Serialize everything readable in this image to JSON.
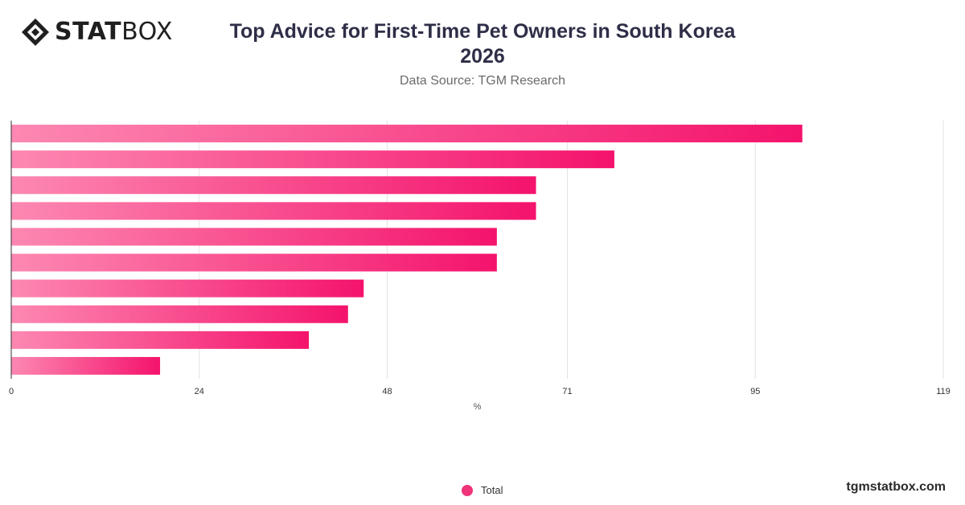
{
  "brand": {
    "logo_bold": "STAT",
    "logo_light": "BOX",
    "footer": "tgmstatbox.com"
  },
  "header": {
    "title_line1": "Top Advice for First-Time Pet Owners in South Korea",
    "title_line2": "2026",
    "subtitle": "Data Source: TGM Research"
  },
  "colors": {
    "bar_start": "#fd88b2",
    "bar_end": "#f4136c",
    "grid": "#e3e3e3",
    "axis": "#333333",
    "legend": "#f0337a"
  },
  "legend": {
    "items": [
      {
        "label": "Total",
        "color": "#f0337a"
      }
    ]
  },
  "chart_data": {
    "type": "bar",
    "orientation": "horizontal",
    "categories": [
      "",
      "",
      "",
      "",
      "",
      "",
      "",
      "",
      "",
      ""
    ],
    "series": [
      {
        "name": "Total",
        "values": [
          101,
          77,
          67,
          67,
          62,
          62,
          45,
          43,
          38,
          19
        ]
      }
    ],
    "xlabel": "%",
    "xlim": [
      0,
      119
    ],
    "xticks": [
      0,
      24,
      48,
      71,
      95,
      119
    ],
    "grid": true,
    "legend_position": "bottom"
  }
}
